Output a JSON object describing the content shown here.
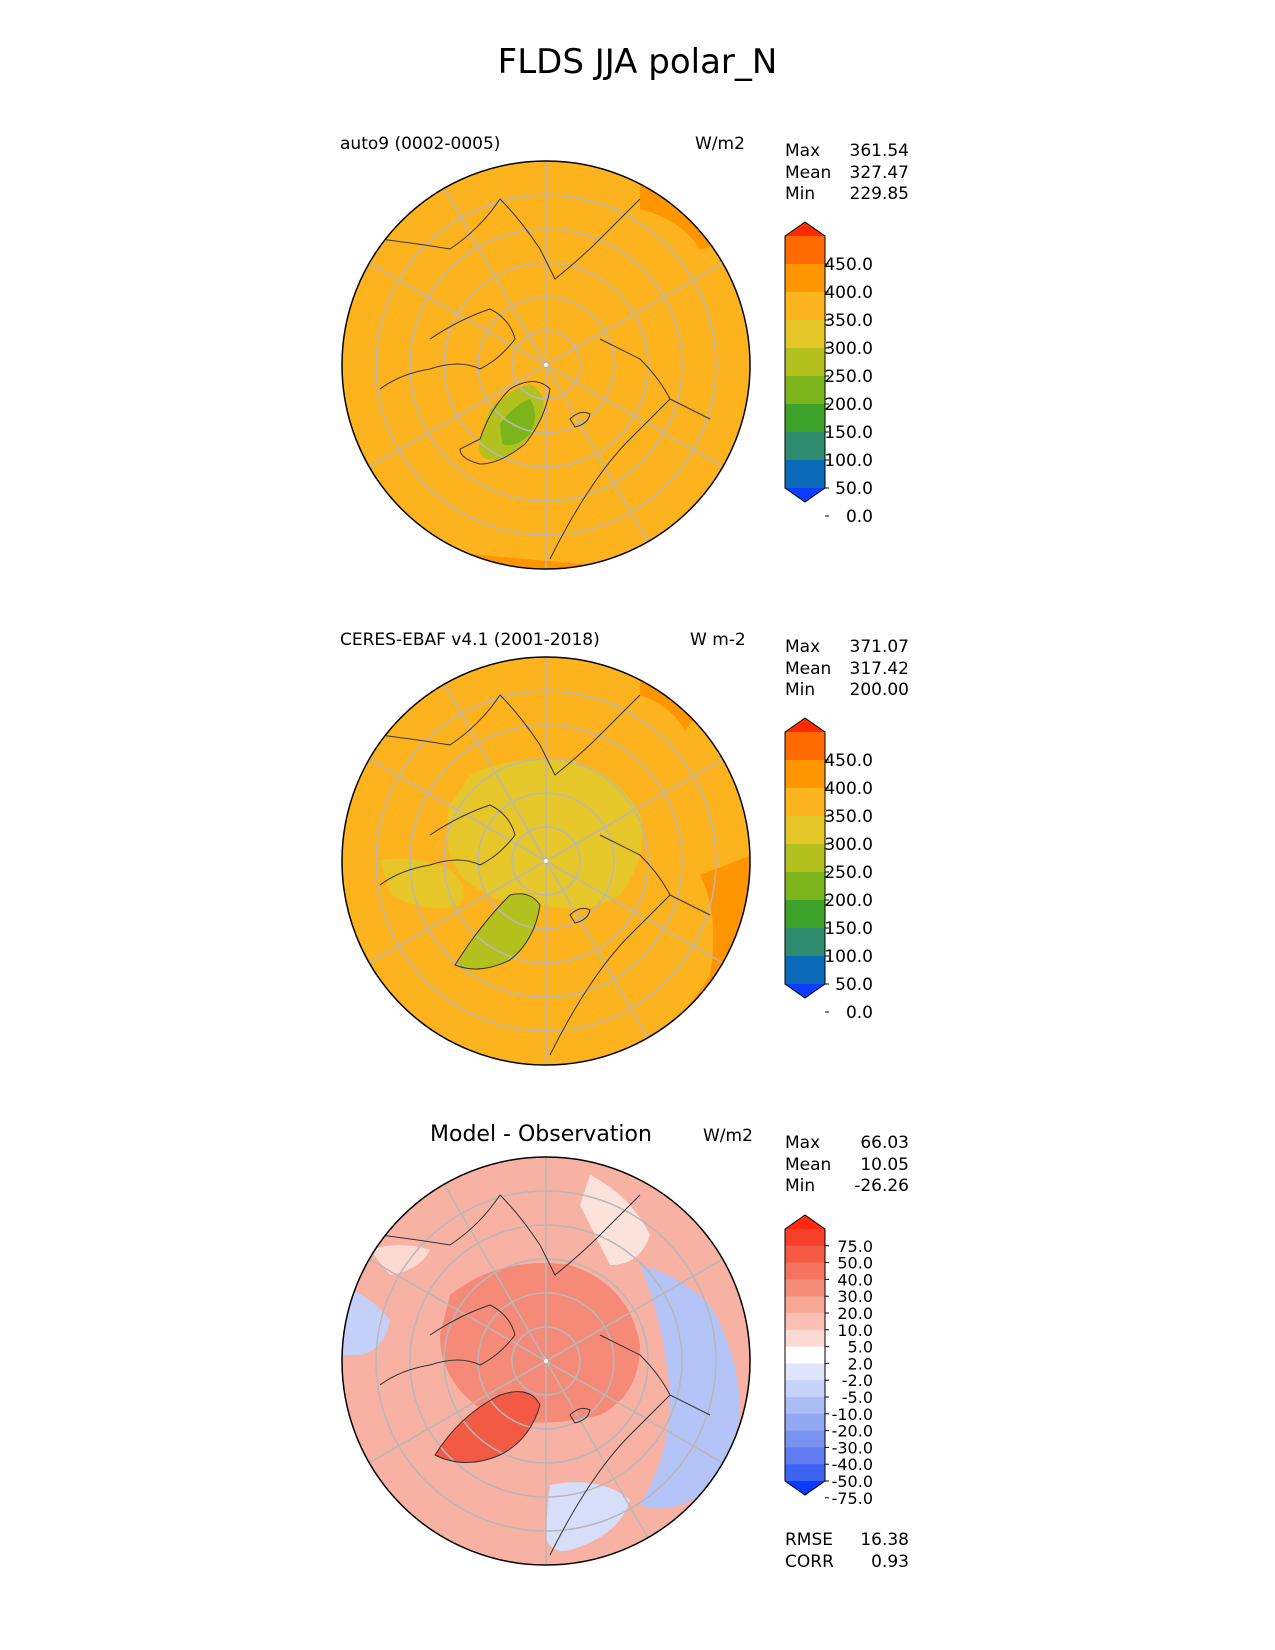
{
  "figure_title": "FLDS JJA polar_N",
  "panels": [
    {
      "title": "auto9 (0002-0005)",
      "units": "W/m2",
      "stats": [
        {
          "label": "Max",
          "value": "361.54"
        },
        {
          "label": "Mean",
          "value": "327.47"
        },
        {
          "label": "Min",
          "value": "229.85"
        }
      ],
      "colorbar": {
        "ticks": [
          "450.0",
          "400.0",
          "350.0",
          "300.0",
          "250.0",
          "200.0",
          "150.0",
          "100.0",
          "50.0",
          "0.0"
        ],
        "colors": [
          "#ff2a00",
          "#ff6a00",
          "#ff9500",
          "#fdb31e",
          "#e6c72a",
          "#b3c11f",
          "#7cb51b",
          "#3ea22a",
          "#2e8b6e",
          "#0b6ab8",
          "#0a3dff"
        ]
      },
      "dominant_color": "#fdb31e",
      "projection": "north-polar-stereographic"
    },
    {
      "title": "CERES-EBAF v4.1 (2001-2018)",
      "units": "W m-2",
      "stats": [
        {
          "label": "Max",
          "value": "371.07"
        },
        {
          "label": "Mean",
          "value": "317.42"
        },
        {
          "label": "Min",
          "value": "200.00"
        }
      ],
      "colorbar": {
        "ticks": [
          "450.0",
          "400.0",
          "350.0",
          "300.0",
          "250.0",
          "200.0",
          "150.0",
          "100.0",
          "50.0",
          "0.0"
        ],
        "colors": [
          "#ff2a00",
          "#ff6a00",
          "#ff9500",
          "#fdb31e",
          "#e6c72a",
          "#b3c11f",
          "#7cb51b",
          "#3ea22a",
          "#2e8b6e",
          "#0b6ab8",
          "#0a3dff"
        ]
      },
      "dominant_color": "#fdb31e",
      "projection": "north-polar-stereographic"
    },
    {
      "title": "Model - Observation",
      "units": "W/m2",
      "stats": [
        {
          "label": "Max",
          "value": "66.03"
        },
        {
          "label": "Mean",
          "value": "10.05"
        },
        {
          "label": "Min",
          "value": "-26.26"
        }
      ],
      "colorbar": {
        "ticks": [
          "75.0",
          "50.0",
          "40.0",
          "30.0",
          "20.0",
          "10.0",
          "5.0",
          "2.0",
          "-2.0",
          "-5.0",
          "-10.0",
          "-20.0",
          "-30.0",
          "-40.0",
          "-50.0",
          "-75.0"
        ],
        "colors": [
          "#ff2a10",
          "#f6402a",
          "#f55a45",
          "#f5735f",
          "#f68c7a",
          "#f8a696",
          "#fac0b3",
          "#fcdad1",
          "#ffffff",
          "#dfe6fb",
          "#c6d2f8",
          "#acbcf5",
          "#93a8f3",
          "#7a93f0",
          "#5f7df0",
          "#3d63f2",
          "#0b3bff"
        ]
      },
      "dominant_color": "#f6a090",
      "projection": "north-polar-stereographic",
      "metrics": [
        {
          "label": "RMSE",
          "value": "16.38"
        },
        {
          "label": "CORR",
          "value": "0.93"
        }
      ]
    }
  ]
}
